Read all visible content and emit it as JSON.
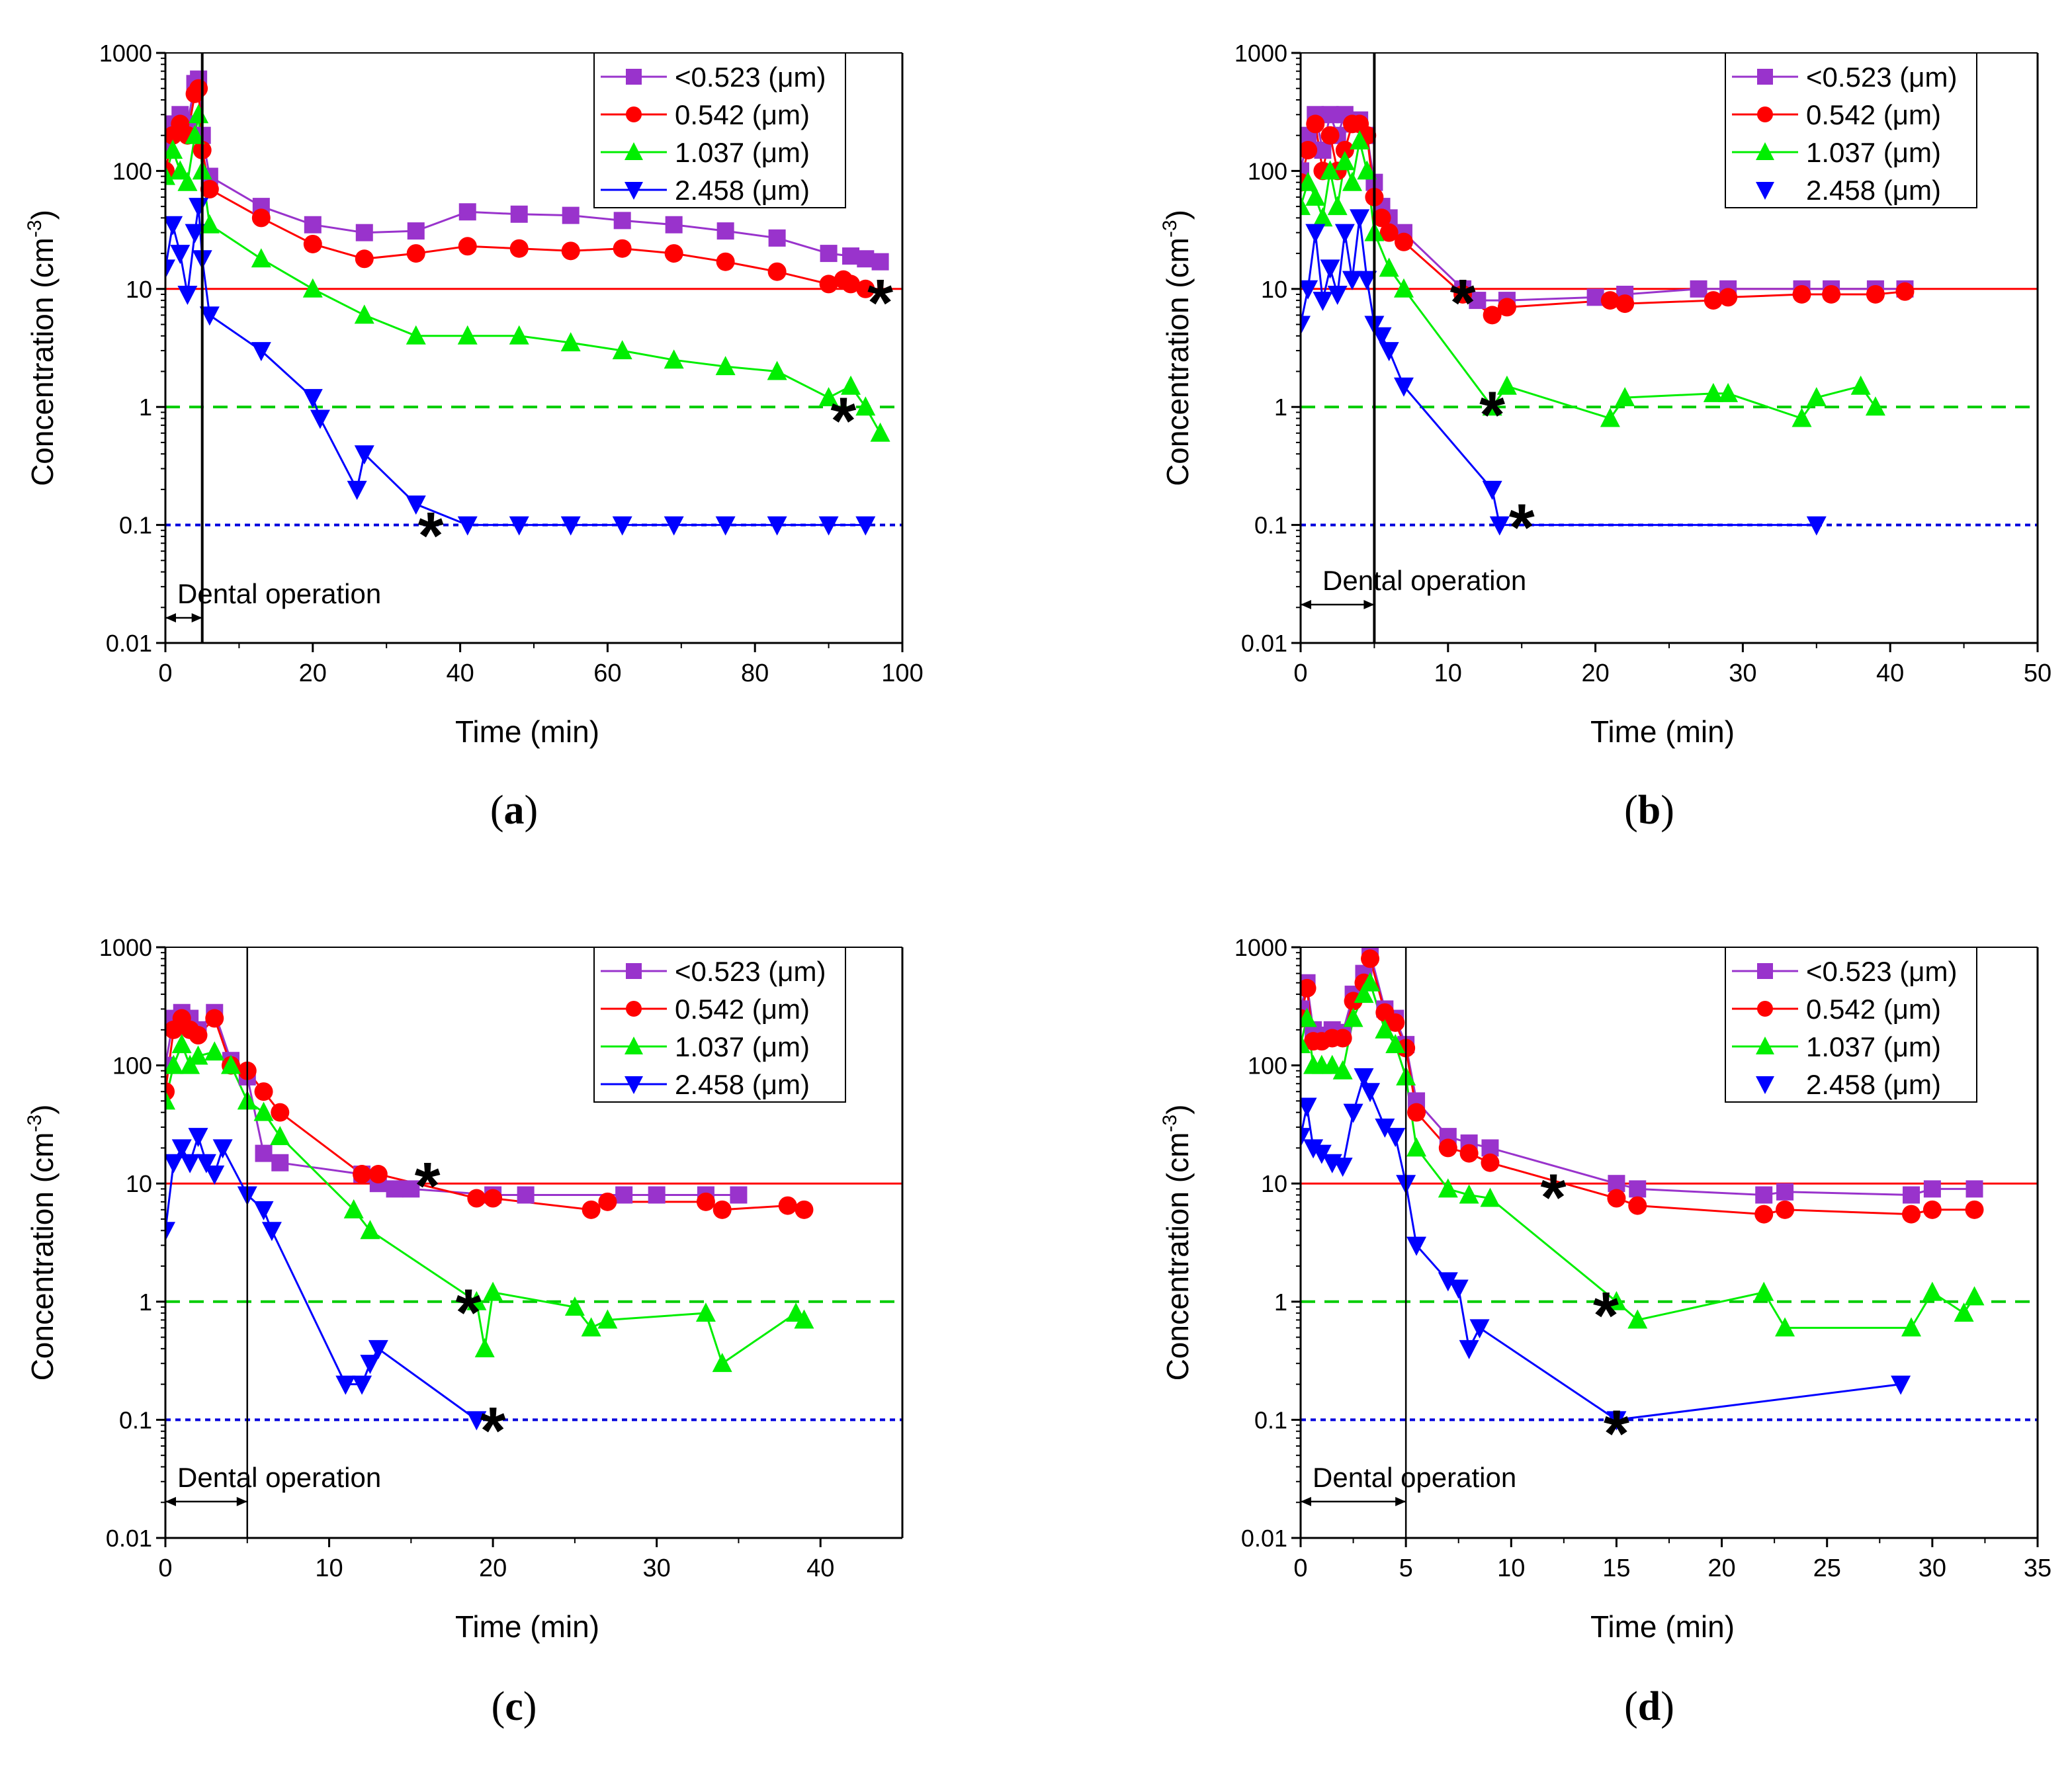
{
  "figure": {
    "panels": [
      "(a)",
      "(b)",
      "(c)",
      "(d)"
    ]
  },
  "chart_data": [
    {
      "panel": "(a)",
      "type": "line",
      "xlabel": "Time (min)",
      "ylabel": "Concentration (cm",
      "ylabel_sup": "-3",
      "ylabel_close": ")",
      "yscale": "log",
      "xlim": [
        0,
        100
      ],
      "ylim": [
        0.01,
        1000
      ],
      "xticks": [
        0,
        20,
        40,
        60,
        80,
        100
      ],
      "yticks": [
        0.01,
        0.1,
        1,
        10,
        100,
        1000
      ],
      "ytick_labels": [
        "0.01",
        "0.1",
        "1",
        "10",
        "100",
        "1000"
      ],
      "operation_end": 5,
      "operation_label": "Dental operation",
      "thresholds": [
        {
          "y": 10,
          "color": "#ff0000",
          "style": "solid"
        },
        {
          "y": 1,
          "color": "#00cc00",
          "style": "dashed"
        },
        {
          "y": 0.1,
          "color": "#0000dd",
          "style": "dotted"
        }
      ],
      "asterisks": [
        {
          "x": 97,
          "y": 8
        },
        {
          "x": 92,
          "y": 0.8
        },
        {
          "x": 36,
          "y": 0.085
        }
      ],
      "series": [
        {
          "name": "<0.523 (μm)",
          "color": "#9933cc",
          "marker": "square",
          "x": [
            0,
            1,
            2,
            3,
            4,
            4.5,
            5,
            6,
            13,
            20,
            27,
            34,
            41,
            48,
            55,
            62,
            69,
            76,
            83,
            90,
            93,
            95,
            97
          ],
          "y": [
            150,
            250,
            300,
            250,
            550,
            600,
            200,
            90,
            50,
            35,
            30,
            31,
            45,
            43,
            42,
            38,
            35,
            31,
            27,
            20,
            19,
            18,
            17
          ]
        },
        {
          "name": "0.542 (μm)",
          "color": "#ff0000",
          "marker": "circle",
          "x": [
            0,
            1,
            2,
            3,
            4,
            4.5,
            5,
            6,
            13,
            20,
            27,
            34,
            41,
            48,
            55,
            62,
            69,
            76,
            83,
            90,
            92,
            93,
            95
          ],
          "y": [
            100,
            200,
            250,
            200,
            450,
            500,
            150,
            70,
            40,
            24,
            18,
            20,
            23,
            22,
            21,
            22,
            20,
            17,
            14,
            11,
            12,
            11,
            10
          ]
        },
        {
          "name": "1.037 (μm)",
          "color": "#00ee00",
          "marker": "triangle-up",
          "x": [
            0,
            1,
            2,
            3,
            4,
            4.5,
            5,
            6,
            13,
            20,
            27,
            34,
            41,
            48,
            55,
            62,
            69,
            76,
            83,
            90,
            93,
            95,
            97
          ],
          "y": [
            90,
            150,
            100,
            80,
            200,
            300,
            100,
            35,
            18,
            10,
            6,
            4,
            4,
            4,
            3.5,
            3,
            2.5,
            2.2,
            2,
            1.2,
            1.5,
            1,
            0.6
          ]
        },
        {
          "name": "2.458 (μm)",
          "color": "#0000ff",
          "marker": "triangle-down",
          "x": [
            0,
            1,
            2,
            3,
            4,
            4.5,
            5,
            6,
            13,
            20,
            21,
            26,
            27,
            34,
            41,
            48,
            55,
            62,
            69,
            76,
            83,
            90,
            95
          ],
          "y": [
            15,
            35,
            20,
            9,
            30,
            50,
            18,
            6,
            3,
            1.2,
            0.8,
            0.2,
            0.4,
            0.15,
            0.1,
            0.1,
            0.1,
            0.1,
            0.1,
            0.1,
            0.1,
            0.1,
            0.1
          ]
        }
      ]
    },
    {
      "panel": "(b)",
      "type": "line",
      "xlabel": "Time (min)",
      "ylabel": "Concentration (cm",
      "ylabel_sup": "-3",
      "ylabel_close": ")",
      "yscale": "log",
      "xlim": [
        0,
        50
      ],
      "ylim": [
        0.01,
        1000
      ],
      "xticks": [
        0,
        10,
        20,
        30,
        40,
        50
      ],
      "yticks": [
        0.01,
        0.1,
        1,
        10,
        100,
        1000
      ],
      "ytick_labels": [
        "0.01",
        "0.1",
        "1",
        "10",
        "100",
        "1000"
      ],
      "operation_end": 5,
      "operation_label": "Dental operation",
      "thresholds": [
        {
          "y": 10,
          "color": "#ff0000",
          "style": "solid"
        },
        {
          "y": 1,
          "color": "#00cc00",
          "style": "dashed"
        },
        {
          "y": 0.1,
          "color": "#0000dd",
          "style": "dotted"
        }
      ],
      "asterisks": [
        {
          "x": 11,
          "y": 8
        },
        {
          "x": 13,
          "y": 0.9
        },
        {
          "x": 15,
          "y": 0.1
        }
      ],
      "series": [
        {
          "name": "<0.523 (μm)",
          "color": "#9933cc",
          "marker": "square",
          "x": [
            0,
            0.5,
            1,
            1.5,
            2,
            2.5,
            3,
            3.5,
            4,
            4.5,
            5,
            5.5,
            6,
            7,
            11,
            12,
            14,
            20,
            22,
            27,
            29,
            34,
            36,
            39,
            41
          ],
          "y": [
            100,
            200,
            300,
            150,
            300,
            200,
            300,
            250,
            270,
            200,
            80,
            50,
            40,
            30,
            10,
            8,
            8,
            8.5,
            9,
            10,
            10,
            10,
            10,
            10,
            10
          ]
        },
        {
          "name": "0.542 (μm)",
          "color": "#ff0000",
          "marker": "circle",
          "x": [
            0,
            0.5,
            1,
            1.5,
            2,
            2.5,
            3,
            3.5,
            4,
            4.5,
            5,
            5.5,
            6,
            7,
            11,
            13,
            14,
            21,
            22,
            28,
            29,
            34,
            36,
            39,
            41
          ],
          "y": [
            80,
            150,
            250,
            100,
            200,
            100,
            150,
            250,
            250,
            200,
            60,
            40,
            30,
            25,
            9,
            6,
            7,
            8,
            7.5,
            8,
            8.5,
            9,
            9,
            9,
            9.5
          ]
        },
        {
          "name": "1.037 (μm)",
          "color": "#00ee00",
          "marker": "triangle-up",
          "x": [
            0,
            0.5,
            1,
            1.5,
            2,
            2.5,
            3,
            3.5,
            4,
            4.5,
            5,
            6,
            7,
            13,
            14,
            21,
            22,
            28,
            29,
            34,
            35,
            38,
            39
          ],
          "y": [
            50,
            80,
            60,
            40,
            100,
            50,
            120,
            80,
            180,
            100,
            30,
            15,
            10,
            1,
            1.5,
            0.8,
            1.2,
            1.3,
            1.3,
            0.8,
            1.2,
            1.5,
            1
          ]
        },
        {
          "name": "2.458 (μm)",
          "color": "#0000ff",
          "marker": "triangle-down",
          "x": [
            0,
            0.5,
            1,
            1.5,
            2,
            2.5,
            3,
            3.5,
            4,
            4.5,
            5,
            5.5,
            6,
            7,
            13,
            13.5,
            35
          ],
          "y": [
            5,
            10,
            30,
            8,
            15,
            9,
            30,
            12,
            40,
            12,
            5,
            4,
            3,
            1.5,
            0.2,
            0.1,
            0.1
          ]
        }
      ]
    },
    {
      "panel": "(c)",
      "type": "line",
      "xlabel": "Time (min)",
      "ylabel": "Concentration (cm",
      "ylabel_sup": "-3",
      "ylabel_close": ")",
      "yscale": "log",
      "xlim": [
        0,
        45
      ],
      "ylim": [
        0.01,
        1000
      ],
      "xticks": [
        0,
        10,
        20,
        30,
        40
      ],
      "yticks": [
        0.01,
        0.1,
        1,
        10,
        100,
        1000
      ],
      "ytick_labels": [
        "0.01",
        "0.1",
        "1",
        "10",
        "100",
        "1000"
      ],
      "operation_end": 5,
      "operation_label": "Dental operation",
      "thresholds": [
        {
          "y": 10,
          "color": "#ff0000",
          "style": "solid"
        },
        {
          "y": 1,
          "color": "#00cc00",
          "style": "dashed"
        },
        {
          "y": 0.1,
          "color": "#0000dd",
          "style": "dotted"
        }
      ],
      "asterisks": [
        {
          "x": 16,
          "y": 10
        },
        {
          "x": 18.5,
          "y": 0.85
        },
        {
          "x": 20,
          "y": 0.085
        }
      ],
      "series": [
        {
          "name": "<0.523 (μm)",
          "color": "#9933cc",
          "marker": "square",
          "x": [
            0,
            0.5,
            1,
            1.5,
            2,
            3,
            4,
            5,
            6,
            7,
            12,
            13,
            14,
            15,
            20,
            22,
            28,
            30,
            33,
            35
          ],
          "y": [
            100,
            250,
            280,
            250,
            200,
            280,
            110,
            80,
            18,
            15,
            12,
            10,
            9,
            9,
            8,
            8,
            8,
            8,
            8,
            8
          ]
        },
        {
          "name": "0.542 (μm)",
          "color": "#ff0000",
          "marker": "circle",
          "x": [
            0,
            0.5,
            1,
            1.5,
            2,
            3,
            4,
            5,
            6,
            7,
            12,
            13,
            19,
            20,
            26,
            27,
            33,
            34,
            38,
            39
          ],
          "y": [
            60,
            200,
            250,
            200,
            180,
            250,
            100,
            90,
            60,
            40,
            12,
            12,
            7.5,
            7.5,
            6,
            7,
            7,
            6,
            6.5,
            6
          ]
        },
        {
          "name": "1.037 (μm)",
          "color": "#00ee00",
          "marker": "triangle-up",
          "x": [
            0,
            0.5,
            1,
            1.5,
            2,
            3,
            4,
            5,
            6,
            7,
            11.5,
            12.5,
            19,
            19.5,
            20,
            25,
            26,
            27,
            33,
            34,
            38.5,
            39
          ],
          "y": [
            50,
            100,
            150,
            100,
            120,
            130,
            100,
            50,
            40,
            25,
            6,
            4,
            1,
            0.4,
            1.2,
            0.9,
            0.6,
            0.7,
            0.8,
            0.3,
            0.8,
            0.7
          ]
        },
        {
          "name": "2.458 (μm)",
          "color": "#0000ff",
          "marker": "triangle-down",
          "x": [
            0,
            0.5,
            1,
            1.5,
            2,
            2.5,
            3,
            3.5,
            5,
            6,
            6.5,
            11,
            12,
            12.5,
            13,
            19
          ],
          "y": [
            4,
            15,
            20,
            15,
            25,
            15,
            12,
            20,
            8,
            6,
            4,
            0.2,
            0.2,
            0.3,
            0.4,
            0.1
          ]
        }
      ]
    },
    {
      "panel": "(d)",
      "type": "line",
      "xlabel": "Time (min)",
      "ylabel": "Concentration (cm",
      "ylabel_sup": "-3",
      "ylabel_close": ")",
      "yscale": "log",
      "xlim": [
        0,
        35
      ],
      "ylim": [
        0.01,
        1000
      ],
      "xticks": [
        0,
        5,
        10,
        15,
        20,
        25,
        30,
        35
      ],
      "yticks": [
        0.01,
        0.1,
        1,
        10,
        100,
        1000
      ],
      "ytick_labels": [
        "0.01",
        "0.1",
        "1",
        "10",
        "100",
        "1000"
      ],
      "operation_end": 5,
      "operation_label": "Dental operation",
      "thresholds": [
        {
          "y": 10,
          "color": "#ff0000",
          "style": "solid"
        },
        {
          "y": 1,
          "color": "#00cc00",
          "style": "dashed"
        },
        {
          "y": 0.1,
          "color": "#0000dd",
          "style": "dotted"
        }
      ],
      "asterisks": [
        {
          "x": 12,
          "y": 8
        },
        {
          "x": 14.5,
          "y": 0.8
        },
        {
          "x": 15,
          "y": 0.08
        }
      ],
      "series": [
        {
          "name": "<0.523 (μm)",
          "color": "#9933cc",
          "marker": "square",
          "x": [
            0,
            0.3,
            0.6,
            1,
            1.5,
            2,
            2.5,
            3,
            3.3,
            4,
            4.5,
            5,
            5.5,
            7,
            8,
            9,
            15,
            16,
            22,
            23,
            29,
            30,
            32
          ],
          "y": [
            300,
            500,
            200,
            180,
            200,
            190,
            400,
            600,
            900,
            300,
            250,
            150,
            50,
            25,
            22,
            20,
            10,
            9,
            8,
            8.5,
            8,
            9,
            9
          ]
        },
        {
          "name": "0.542 (μm)",
          "color": "#ff0000",
          "marker": "circle",
          "x": [
            0,
            0.3,
            0.6,
            1,
            1.5,
            2,
            2.5,
            3,
            3.3,
            4,
            4.5,
            5,
            5.5,
            7,
            8,
            9,
            15,
            16,
            22,
            23,
            29,
            30,
            32
          ],
          "y": [
            250,
            450,
            160,
            160,
            170,
            170,
            350,
            500,
            800,
            280,
            230,
            140,
            40,
            20,
            18,
            15,
            7.5,
            6.5,
            5.5,
            6,
            5.5,
            6,
            6
          ]
        },
        {
          "name": "1.037 (μm)",
          "color": "#00ee00",
          "marker": "triangle-up",
          "x": [
            0,
            0.3,
            0.6,
            1,
            1.5,
            2,
            2.5,
            3,
            3.3,
            4,
            4.5,
            5,
            5.5,
            7,
            8,
            9,
            15,
            16,
            22,
            23,
            29,
            30,
            31.5,
            32
          ],
          "y": [
            150,
            250,
            100,
            100,
            100,
            90,
            250,
            400,
            500,
            200,
            150,
            80,
            20,
            9,
            8,
            7.5,
            1,
            0.7,
            1.2,
            0.6,
            0.6,
            1.2,
            0.8,
            1.1
          ]
        },
        {
          "name": "2.458 (μm)",
          "color": "#0000ff",
          "marker": "triangle-down",
          "x": [
            0,
            0.3,
            0.6,
            1,
            1.5,
            2,
            2.5,
            3,
            3.3,
            4,
            4.5,
            5,
            5.5,
            7,
            7.5,
            8,
            8.5,
            15,
            28.5
          ],
          "y": [
            25,
            45,
            20,
            18,
            15,
            14,
            40,
            80,
            60,
            30,
            25,
            10,
            3,
            1.5,
            1.3,
            0.4,
            0.6,
            0.1,
            0.2
          ]
        }
      ]
    }
  ]
}
